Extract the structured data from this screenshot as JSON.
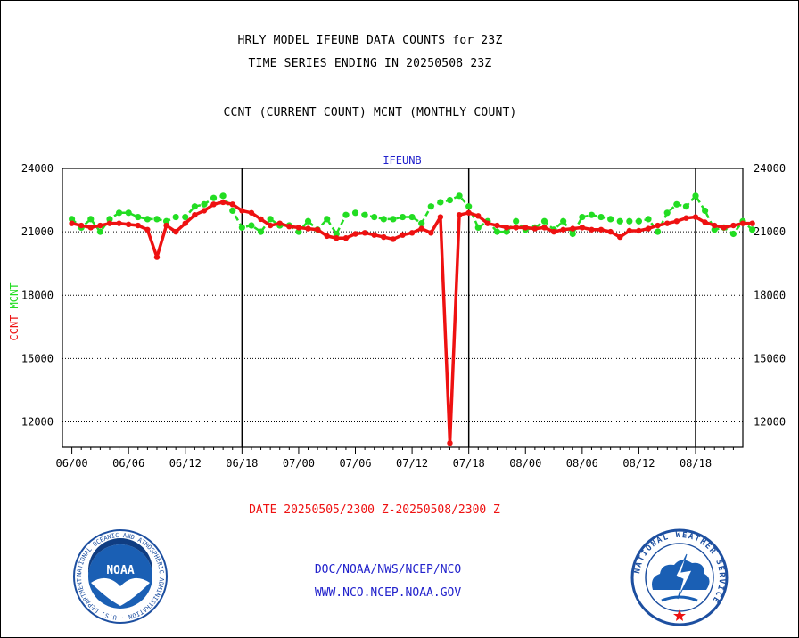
{
  "header": {
    "title": "HRLY MODEL IFEUNB DATA COUNTS for 23Z",
    "subtitle_line": "TIME SERIES ENDING IN 20250508 23Z",
    "legend_line": "CCNT (CURRENT COUNT) MCNT (MONTHLY COUNT)"
  },
  "footer": {
    "date_range": "DATE 20250505/2300 Z-20250508/2300 Z",
    "link1": "DOC/NOAA/NWS/NCEP/NCO",
    "link2": "WWW.NCO.NCEP.NOAA.GOV"
  },
  "logos": {
    "noaa": "NOAA",
    "noaa_ring": "NATIONAL OCEANIC AND ATMOSPHERIC ADMINISTRATION · U.S. DEPARTMENT OF COMMERCE",
    "nws_ring": "NATIONAL WEATHER SERVICE"
  },
  "colors": {
    "ccnt": "#ee1111",
    "mcnt": "#22dd22",
    "panel_title": "#2222cc"
  },
  "chart_data": {
    "type": "line",
    "title": "IFEUNB",
    "ylabel_ccnt": "CCNT",
    "ylabel_mcnt": "MCNT",
    "ylim": [
      10800,
      24000
    ],
    "yticks": [
      12000,
      15000,
      18000,
      21000,
      24000
    ],
    "ytick_labels": [
      "12000",
      "15000",
      "18000",
      "21000",
      "24000"
    ],
    "xlim": [
      -1,
      71
    ],
    "xticks": [
      0,
      6,
      12,
      18,
      24,
      30,
      36,
      42,
      48,
      54,
      60,
      66
    ],
    "xtick_labels": [
      "06/00",
      "06/06",
      "06/12",
      "06/18",
      "07/00",
      "07/06",
      "07/12",
      "07/18",
      "08/00",
      "08/06",
      "08/12",
      "08/18"
    ],
    "day_dividers": [
      18,
      42,
      66
    ],
    "grid": "horizontal dotted at y ticks",
    "series": [
      {
        "name": "CCNT",
        "color": "#ee1111",
        "values": [
          21400,
          21300,
          21200,
          21300,
          21400,
          21400,
          21350,
          21300,
          21100,
          19800,
          21300,
          21000,
          21400,
          21800,
          22000,
          22300,
          22400,
          22300,
          22000,
          21900,
          21600,
          21300,
          21400,
          21250,
          21200,
          21150,
          21100,
          20800,
          20700,
          20700,
          20900,
          20950,
          20850,
          20750,
          20650,
          20850,
          20950,
          21150,
          20950,
          21700,
          11000,
          21800,
          21900,
          21750,
          21400,
          21300,
          21200,
          21200,
          21200,
          21150,
          21200,
          21000,
          21100,
          21150,
          21200,
          21100,
          21100,
          21000,
          20750,
          21050,
          21050,
          21150,
          21300,
          21400,
          21500,
          21650,
          21700,
          21450,
          21300,
          21200,
          21300,
          21400,
          21400
        ]
      },
      {
        "name": "MCNT",
        "color": "#22dd22",
        "values": [
          21600,
          21200,
          21600,
          21000,
          21600,
          21900,
          21900,
          21700,
          21600,
          21600,
          21500,
          21700,
          21700,
          22200,
          22300,
          22600,
          22700,
          22000,
          21200,
          21300,
          21000,
          21600,
          21300,
          21300,
          21000,
          21500,
          21100,
          21600,
          20900,
          21800,
          21900,
          21800,
          21700,
          21600,
          21600,
          21700,
          21700,
          21400,
          22200,
          22400,
          22500,
          22700,
          22200,
          21200,
          21500,
          21000,
          21000,
          21500,
          21100,
          21200,
          21500,
          21100,
          21500,
          20900,
          21700,
          21800,
          21700,
          21600,
          21500,
          21500,
          21500,
          21600,
          21000,
          21900,
          22300,
          22200,
          22700,
          22000,
          21100,
          21200,
          20900,
          21500,
          21100
        ]
      }
    ]
  }
}
